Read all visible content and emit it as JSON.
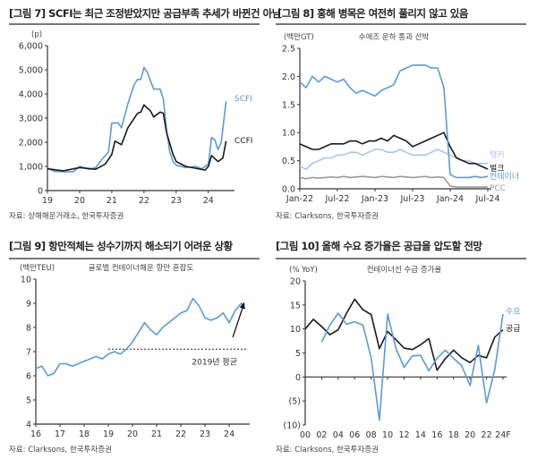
{
  "colors": {
    "blue": "#5b9bd5",
    "light_blue": "#a9c5ea",
    "black": "#1a1a1a",
    "gray": "#9a9a9a"
  },
  "chart_data": [
    {
      "id": "fig7",
      "type": "line",
      "title": "[그림 7] SCFI는 최근 조정받았지만 공급부족 추세가 바뀐건 아님",
      "source": "자료: 상해해운거래소, 한국투자증권",
      "ylabel": "(p)",
      "ylim": [
        0,
        6000
      ],
      "yticks": [
        0,
        1000,
        2000,
        3000,
        4000,
        5000,
        6000
      ],
      "ytick_labels": [
        "0",
        "1,000",
        "2,000",
        "3,000",
        "4,000",
        "5,000",
        "6,000"
      ],
      "xlim": [
        2019,
        2024.7
      ],
      "xticks": [
        2019,
        2020,
        2021,
        2022,
        2023,
        2024
      ],
      "xtick_labels": [
        "19",
        "20",
        "21",
        "22",
        "23",
        "24"
      ],
      "series": [
        {
          "name": "SCFI",
          "color": "blue",
          "x": [
            2019,
            2019.2,
            2019.5,
            2019.8,
            2020,
            2020.3,
            2020.5,
            2020.7,
            2020.9,
            2021,
            2021.2,
            2021.3,
            2021.5,
            2021.7,
            2021.8,
            2021.9,
            2022,
            2022.1,
            2022.3,
            2022.5,
            2022.6,
            2022.7,
            2022.8,
            2022.9,
            2023,
            2023.3,
            2023.6,
            2023.8,
            2024,
            2024.1,
            2024.2,
            2024.3,
            2024.4,
            2024.55
          ],
          "y": [
            950,
            800,
            780,
            780,
            1000,
            880,
            950,
            1300,
            1600,
            2800,
            2800,
            2600,
            3600,
            4400,
            4600,
            4600,
            5100,
            4900,
            4200,
            4200,
            3800,
            2500,
            1600,
            1200,
            1050,
            950,
            1000,
            900,
            1100,
            2200,
            2100,
            1700,
            2000,
            3700
          ]
        },
        {
          "name": "CCFI",
          "color": "black",
          "x": [
            2019,
            2019.5,
            2020,
            2020.5,
            2020.8,
            2021,
            2021.1,
            2021.3,
            2021.5,
            2021.8,
            2021.9,
            2022,
            2022.2,
            2022.3,
            2022.5,
            2022.6,
            2022.7,
            2022.9,
            2023,
            2023.3,
            2023.7,
            2023.9,
            2024,
            2024.1,
            2024.3,
            2024.45,
            2024.55
          ],
          "y": [
            900,
            820,
            950,
            880,
            1100,
            1500,
            2050,
            1900,
            2600,
            3200,
            3250,
            3550,
            3300,
            3050,
            3250,
            3200,
            2400,
            1500,
            1200,
            1000,
            900,
            850,
            1000,
            1450,
            1200,
            1350,
            2050
          ]
        }
      ]
    },
    {
      "id": "fig8",
      "type": "line",
      "title": "[그림 8] 홍해 병목은 여전히 풀리지 않고 있음",
      "subtitle": "수에즈 운하 통과 선박",
      "source": "자료: Clarksons, 한국투자증권",
      "ylabel": "(백만GT)",
      "ylim": [
        0,
        2.5
      ],
      "yticks": [
        0,
        0.5,
        1,
        1.5,
        2,
        2.5
      ],
      "ytick_labels": [
        "0.0",
        "0.5",
        "1.0",
        "1.5",
        "2.0",
        "2.5"
      ],
      "xlim": [
        0,
        30
      ],
      "xticks": [
        0,
        6,
        12,
        18,
        24,
        30
      ],
      "xtick_labels": [
        "Jan-22",
        "Jul-22",
        "Jan-23",
        "Jul-23",
        "Jan-24",
        "Jul-24"
      ],
      "series": [
        {
          "name": "탱커",
          "color": "light_blue",
          "y": [
            0.4,
            0.35,
            0.45,
            0.5,
            0.55,
            0.55,
            0.6,
            0.6,
            0.65,
            0.65,
            0.6,
            0.65,
            0.7,
            0.7,
            0.65,
            0.65,
            0.7,
            0.65,
            0.6,
            0.6,
            0.6,
            0.65,
            0.7,
            0.65,
            0.6,
            0.55,
            0.5,
            0.5,
            0.45,
            0.45,
            0.45
          ]
        },
        {
          "name": "벌크",
          "color": "black",
          "y": [
            0.8,
            0.75,
            0.7,
            0.7,
            0.75,
            0.8,
            0.8,
            0.8,
            0.85,
            0.85,
            0.8,
            0.85,
            0.85,
            0.9,
            0.85,
            0.95,
            0.9,
            0.85,
            0.75,
            0.8,
            0.85,
            0.9,
            0.95,
            1.0,
            0.75,
            0.55,
            0.5,
            0.45,
            0.45,
            0.4,
            0.35
          ]
        },
        {
          "name": "PCC",
          "color": "gray",
          "y": [
            0.2,
            0.18,
            0.2,
            0.19,
            0.2,
            0.21,
            0.2,
            0.22,
            0.2,
            0.21,
            0.22,
            0.21,
            0.2,
            0.22,
            0.21,
            0.2,
            0.22,
            0.21,
            0.2,
            0.21,
            0.22,
            0.2,
            0.21,
            0.2,
            0.05,
            0.03,
            0.03,
            0.03,
            0.03,
            0.03,
            0.03
          ]
        },
        {
          "name": "컨테이너",
          "color": "blue",
          "y": [
            1.9,
            1.8,
            2.0,
            1.9,
            2.0,
            1.95,
            1.9,
            1.95,
            1.8,
            1.7,
            1.75,
            1.7,
            1.65,
            1.75,
            1.8,
            1.85,
            2.1,
            2.15,
            2.2,
            2.2,
            2.2,
            2.15,
            2.15,
            1.8,
            0.25,
            0.2,
            0.2,
            0.2,
            0.22,
            0.2,
            0.22
          ]
        }
      ]
    },
    {
      "id": "fig9",
      "type": "line",
      "title": "[그림 9] 항만적체는 성수기까지 해소되기 어려운 상황",
      "subtitle": "글로벌 컨테이너해운 항만 혼잡도",
      "source": "자료: Clarksons, 한국투자증권",
      "ylabel": "(백만TEU)",
      "ylim": [
        4,
        10
      ],
      "yticks": [
        4,
        5,
        6,
        7,
        8,
        9,
        10
      ],
      "ytick_labels": [
        "4",
        "5",
        "6",
        "7",
        "8",
        "9",
        "10"
      ],
      "xlim": [
        2016,
        2024.7
      ],
      "xticks": [
        2016,
        2017,
        2018,
        2019,
        2020,
        2021,
        2022,
        2023,
        2024
      ],
      "xtick_labels": [
        "16",
        "17",
        "18",
        "19",
        "20",
        "21",
        "22",
        "23",
        "24"
      ],
      "reference": {
        "label": "2019년 평균",
        "value": 7.1,
        "from": 2019
      },
      "series": [
        {
          "name": "항만 혼잡도",
          "color": "blue",
          "x": [
            2016,
            2016.25,
            2016.5,
            2016.75,
            2017,
            2017.25,
            2017.5,
            2017.75,
            2018,
            2018.25,
            2018.5,
            2018.75,
            2019,
            2019.25,
            2019.5,
            2019.75,
            2020,
            2020.25,
            2020.5,
            2020.75,
            2021,
            2021.25,
            2021.5,
            2021.75,
            2022,
            2022.25,
            2022.5,
            2022.75,
            2023,
            2023.25,
            2023.5,
            2023.75,
            2024,
            2024.25,
            2024.5,
            2024.6
          ],
          "y": [
            6.3,
            6.4,
            6.0,
            6.1,
            6.5,
            6.5,
            6.4,
            6.5,
            6.6,
            6.7,
            6.8,
            6.7,
            6.9,
            7.0,
            6.9,
            7.1,
            7.4,
            7.8,
            8.2,
            7.9,
            7.7,
            8.0,
            8.2,
            8.4,
            8.6,
            8.7,
            9.2,
            8.9,
            8.4,
            8.3,
            8.4,
            8.6,
            8.2,
            8.7,
            9.0,
            8.9
          ]
        }
      ]
    },
    {
      "id": "fig10",
      "type": "line",
      "title": "[그림 10] 올해 수요 증가율은 공급을 압도할 전망",
      "subtitle": "컨테이너선 수급 증가율",
      "source": "자료: Clarksons, 한국투자증권",
      "ylabel": "(% YoY)",
      "ylim": [
        -10,
        20
      ],
      "yticks": [
        -10,
        -5,
        0,
        5,
        10,
        15,
        20
      ],
      "ytick_labels": [
        "(10)",
        "(5)",
        "0",
        "5",
        "10",
        "15",
        "20"
      ],
      "xlim": [
        2000,
        2024
      ],
      "xticks": [
        2000,
        2002,
        2004,
        2006,
        2008,
        2010,
        2012,
        2014,
        2016,
        2018,
        2020,
        2022,
        2024
      ],
      "xtick_labels": [
        "00",
        "02",
        "04",
        "06",
        "08",
        "10",
        "12",
        "14",
        "16",
        "18",
        "20",
        "22",
        "24F"
      ],
      "series": [
        {
          "name": "공급",
          "color": "black",
          "x": [
            2000,
            2001,
            2002,
            2003,
            2004,
            2005,
            2006,
            2007,
            2008,
            2009,
            2010,
            2011,
            2012,
            2013,
            2014,
            2015,
            2016,
            2017,
            2018,
            2019,
            2020,
            2021,
            2022,
            2023,
            2024
          ],
          "y": [
            10,
            12,
            10.5,
            8.8,
            9.8,
            13.2,
            16.2,
            14,
            13,
            5.9,
            9.5,
            7.8,
            6,
            5.7,
            6.7,
            8,
            1.4,
            3.8,
            5.6,
            4,
            3,
            4.5,
            4,
            8.3,
            9.8
          ]
        },
        {
          "name": "수요",
          "color": "blue",
          "x": [
            2002,
            2003,
            2004,
            2005,
            2006,
            2007,
            2008,
            2009,
            2010,
            2011,
            2012,
            2013,
            2014,
            2015,
            2016,
            2017,
            2018,
            2019,
            2020,
            2021,
            2022,
            2023,
            2024
          ],
          "y": [
            7.3,
            10.8,
            13.3,
            11,
            11.5,
            10.8,
            4,
            -9,
            13.1,
            6,
            2,
            4.4,
            4.5,
            1.3,
            3.9,
            5.6,
            3.9,
            2.3,
            -1.8,
            6.6,
            -5.4,
            1.5,
            13.1
          ]
        }
      ]
    }
  ]
}
